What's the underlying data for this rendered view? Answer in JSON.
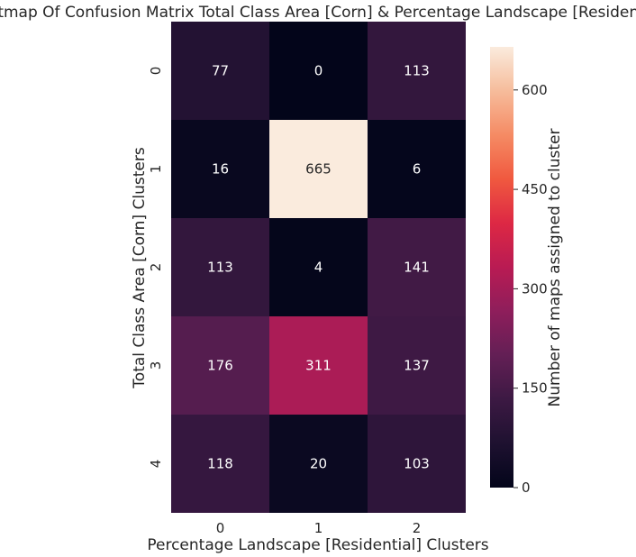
{
  "chart_data": {
    "type": "heatmap",
    "title": "Heatmap Of Confusion Matrix Total Class Area [Corn] & Percentage Landscape [Residential]",
    "xlabel": "Percentage Landscape [Residential] Clusters",
    "ylabel": "Total Class Area [Corn] Clusters",
    "x_categories": [
      "0",
      "1",
      "2"
    ],
    "y_categories": [
      "0",
      "1",
      "2",
      "3",
      "4"
    ],
    "values": [
      [
        77,
        0,
        113
      ],
      [
        16,
        665,
        6
      ],
      [
        113,
        4,
        141
      ],
      [
        176,
        311,
        137
      ],
      [
        118,
        20,
        103
      ]
    ],
    "colorbar": {
      "label": "Number of maps assigned to cluster",
      "range": [
        0,
        665
      ],
      "ticks": [
        0,
        150,
        300,
        450,
        600
      ],
      "colormap": "rocket"
    }
  }
}
